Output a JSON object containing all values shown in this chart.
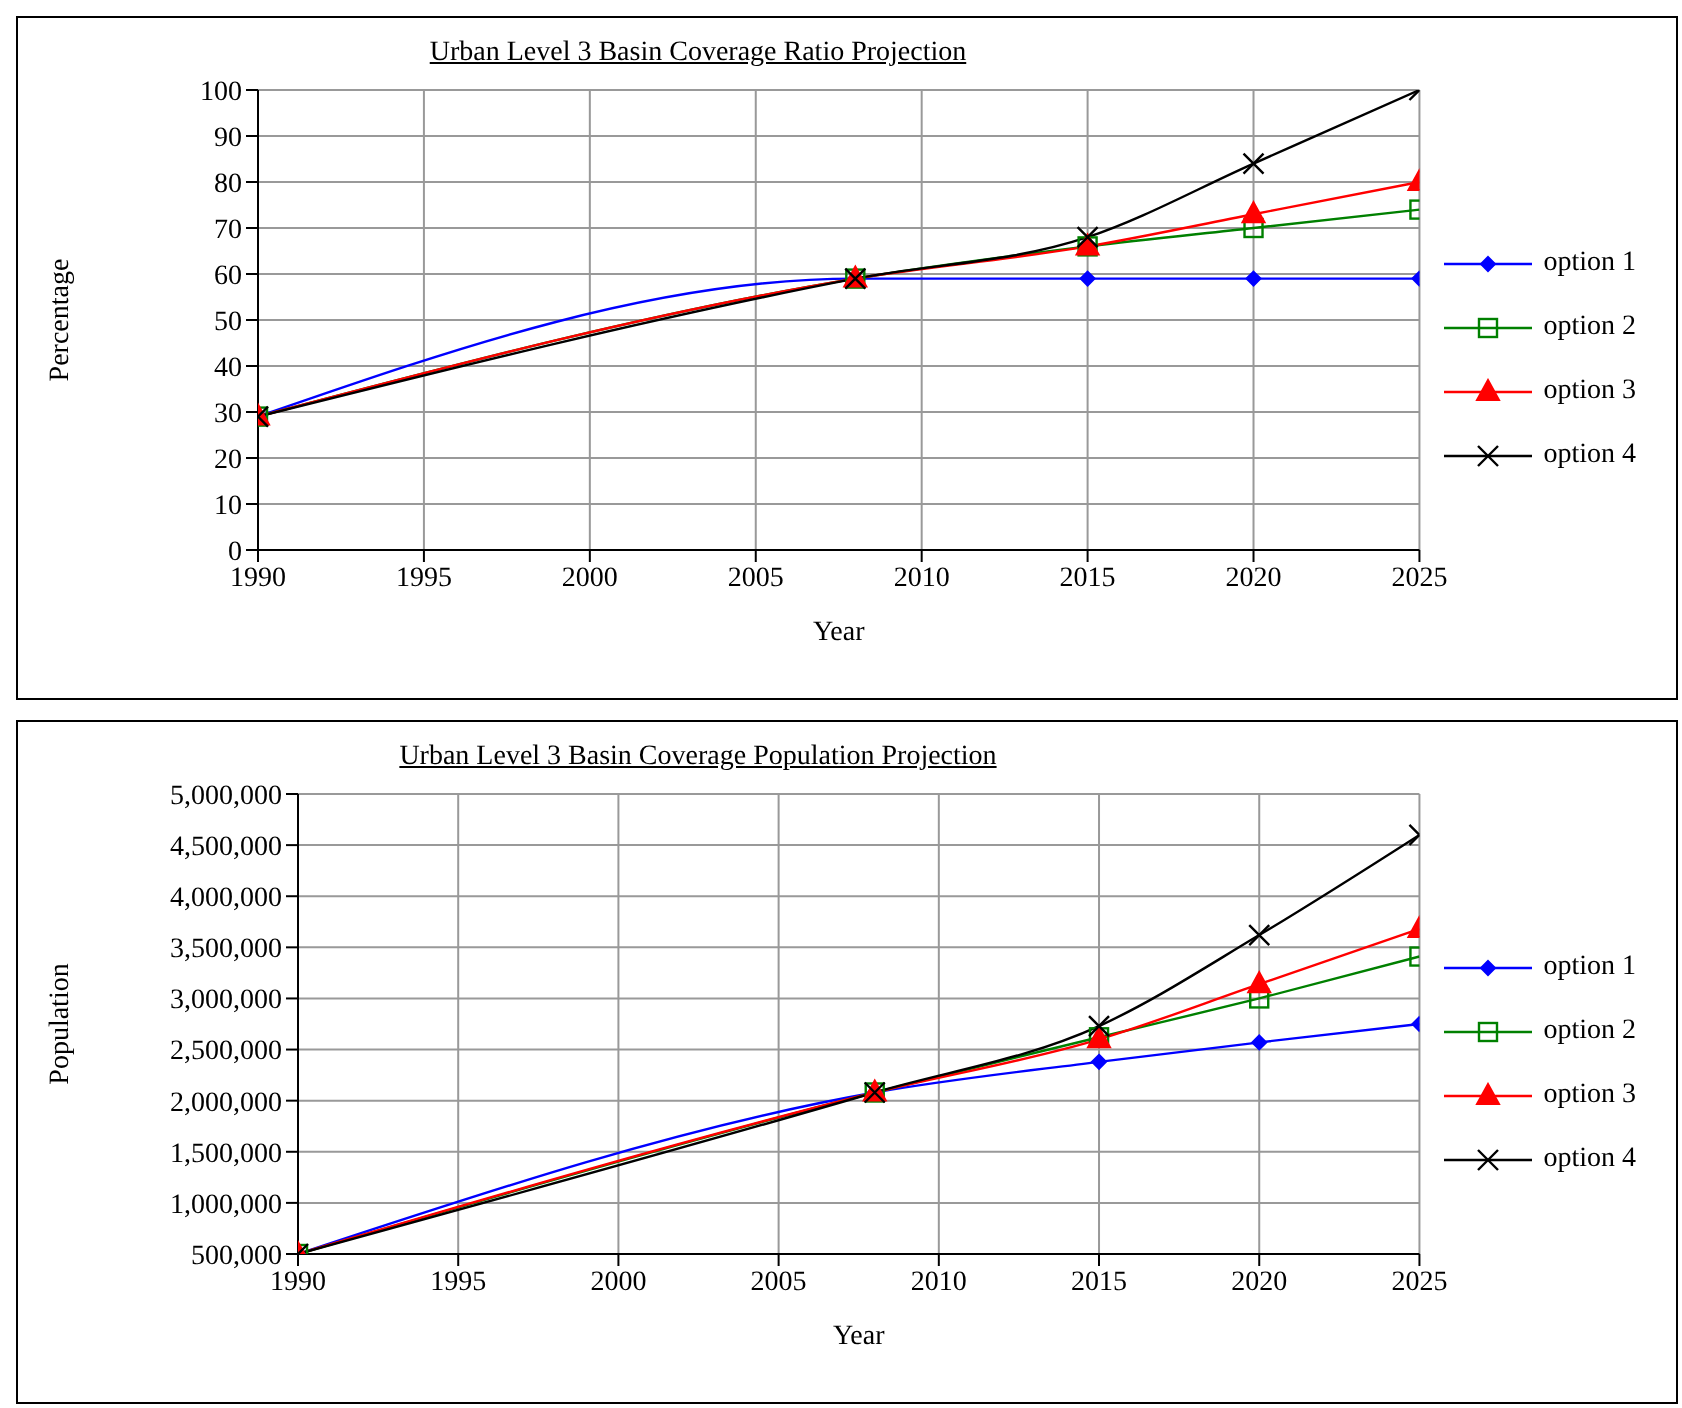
{
  "chart_data": [
    {
      "type": "line",
      "title": "Urban Level 3 Basin Coverage Ratio Projection",
      "xlabel": "Year",
      "ylabel": "Percentage",
      "x": [
        1990,
        2008,
        2015,
        2020,
        2025
      ],
      "xlim": [
        1990,
        2025
      ],
      "xticks": [
        1990,
        1995,
        2000,
        2005,
        2010,
        2015,
        2020,
        2025
      ],
      "ylim": [
        0,
        100
      ],
      "yticks": [
        0,
        10,
        20,
        30,
        40,
        50,
        60,
        70,
        80,
        90,
        100
      ],
      "grid": true,
      "legend": "right",
      "series": [
        {
          "name": "option 1",
          "color": "#0000ff",
          "marker": "diamond",
          "values": [
            29,
            59,
            59,
            59,
            59
          ]
        },
        {
          "name": "option 2",
          "color": "#008000",
          "marker": "square",
          "values": [
            29,
            59,
            66,
            70,
            74
          ]
        },
        {
          "name": "option 3",
          "color": "#ff0000",
          "marker": "triangle",
          "values": [
            29,
            59,
            66,
            73,
            80
          ]
        },
        {
          "name": "option 4",
          "color": "#000000",
          "marker": "cross",
          "values": [
            29,
            59,
            68,
            84,
            100
          ]
        }
      ]
    },
    {
      "type": "line",
      "title": "Urban Level 3 Basin Coverage Population Projection",
      "xlabel": "Year",
      "ylabel": "Population",
      "x": [
        1990,
        2008,
        2015,
        2020,
        2025
      ],
      "xlim": [
        1990,
        2025
      ],
      "xticks": [
        1990,
        1995,
        2000,
        2005,
        2010,
        2015,
        2020,
        2025
      ],
      "ylim": [
        500000,
        5000000
      ],
      "yticks": [
        {
          "value": 500000,
          "label": "500,000"
        },
        {
          "value": 1000000,
          "label": "1,000,000"
        },
        {
          "value": 1500000,
          "label": "1,500,000"
        },
        {
          "value": 2000000,
          "label": "2,000,000"
        },
        {
          "value": 2500000,
          "label": "2,500,000"
        },
        {
          "value": 3000000,
          "label": "3,000,000"
        },
        {
          "value": 3500000,
          "label": "3,500,000"
        },
        {
          "value": 4000000,
          "label": "4,000,000"
        },
        {
          "value": 4500000,
          "label": "4,500,000"
        },
        {
          "value": 5000000,
          "label": "5,000,000"
        }
      ],
      "grid": true,
      "legend": "right",
      "series": [
        {
          "name": "option 1",
          "color": "#0000ff",
          "marker": "diamond",
          "values": [
            500000,
            2080000,
            2380000,
            2570000,
            2750000
          ]
        },
        {
          "name": "option 2",
          "color": "#008000",
          "marker": "square",
          "values": [
            500000,
            2080000,
            2620000,
            3000000,
            3410000
          ]
        },
        {
          "name": "option 3",
          "color": "#ff0000",
          "marker": "triangle",
          "values": [
            500000,
            2080000,
            2600000,
            3140000,
            3680000
          ]
        },
        {
          "name": "option 4",
          "color": "#000000",
          "marker": "cross",
          "values": [
            500000,
            2080000,
            2730000,
            3620000,
            4600000
          ]
        }
      ]
    }
  ]
}
